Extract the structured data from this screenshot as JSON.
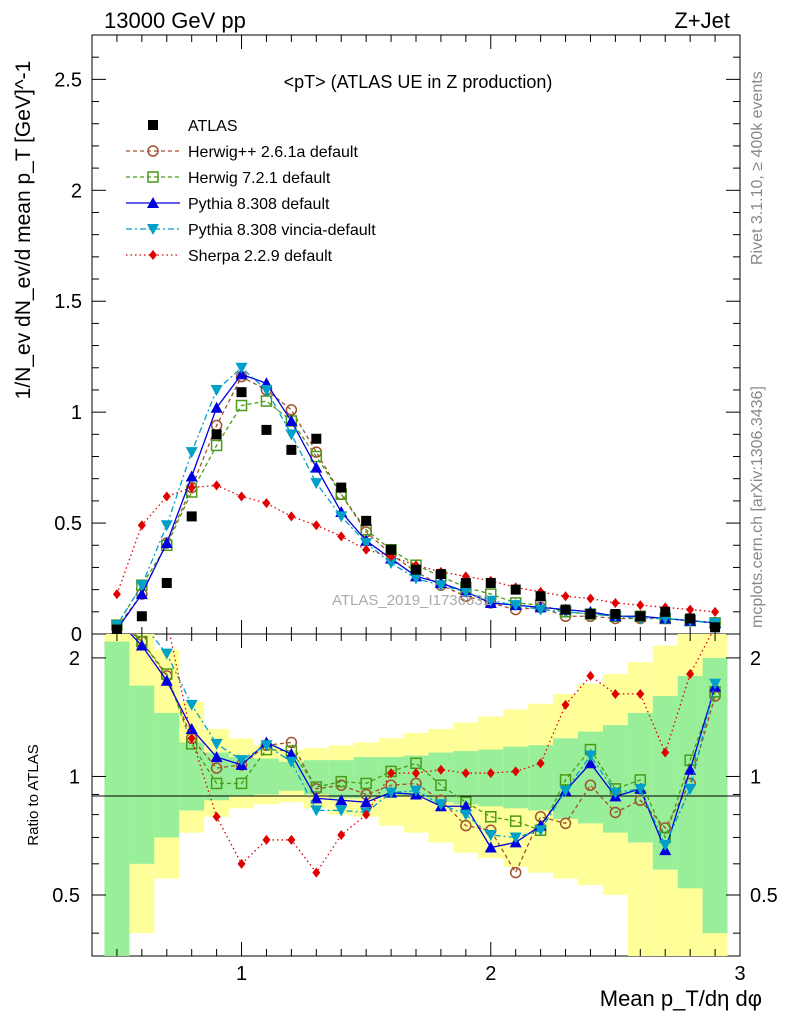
{
  "header": {
    "left": "13000 GeV pp",
    "right": "Z+Jet"
  },
  "side_labels": {
    "rivet": "Rivet 3.1.10, ≥ 400k events",
    "mcplots": "mcplots.cern.ch [arXiv:1306.3436]"
  },
  "watermark": "ATLAS_2019_I1736531",
  "chart_data": {
    "type": "scatter",
    "title": "<pT> (ATLAS UE in Z production)",
    "xlabel": "Mean p_T/dη dφ",
    "ylabel": "1/N_ev dN_ev/d mean p_T [GeV]^-1",
    "ratio_ylabel": "Ratio to ATLAS",
    "xlim": [
      0.4,
      3.0
    ],
    "ylim": [
      0,
      2.7
    ],
    "ratio_ylim": [
      0.35,
      2.3
    ],
    "ratio_log": true,
    "x_ticks": [
      "1",
      "2",
      "3"
    ],
    "y_ticks": [
      "0",
      "0.5",
      "1",
      "1.5",
      "2",
      "2.5"
    ],
    "ratio_ticks": [
      "0.5",
      "1",
      "2"
    ],
    "legend_position": "top-left",
    "x": [
      0.5,
      0.6,
      0.7,
      0.8,
      0.9,
      1.0,
      1.1,
      1.2,
      1.3,
      1.4,
      1.5,
      1.6,
      1.7,
      1.8,
      1.9,
      2.0,
      2.1,
      2.2,
      2.3,
      2.4,
      2.5,
      2.6,
      2.7,
      2.8,
      2.9
    ],
    "series": [
      {
        "name": "ATLAS",
        "color": "#000000",
        "marker": "square",
        "dash": "none",
        "values": [
          0.02,
          0.08,
          0.23,
          0.53,
          0.9,
          1.09,
          0.92,
          0.83,
          0.88,
          0.66,
          0.51,
          0.38,
          0.29,
          0.27,
          0.23,
          0.23,
          0.2,
          0.17,
          0.11,
          0.09,
          0.09,
          0.08,
          0.1,
          0.07,
          0.03
        ],
        "ratio": [
          1,
          1,
          1,
          1,
          1,
          1,
          1,
          1,
          1,
          1,
          1,
          1,
          1,
          1,
          1,
          1,
          1,
          1,
          1,
          1,
          1,
          1,
          1,
          1,
          1
        ]
      },
      {
        "name": "Herwig++ 2.6.1a default",
        "color": "#a0522d",
        "marker": "open-circle",
        "dash": "4,3",
        "values": [
          0.03,
          0.18,
          0.41,
          0.66,
          0.94,
          1.16,
          1.1,
          1.01,
          0.82,
          0.63,
          0.46,
          0.36,
          0.28,
          0.22,
          0.17,
          0.14,
          0.11,
          0.12,
          0.08,
          0.08,
          0.07,
          0.07,
          0.07,
          0.06,
          0.05
        ],
        "ratio": [
          2.5,
          2.2,
          1.8,
          1.25,
          1.05,
          1.07,
          1.2,
          1.22,
          0.93,
          0.95,
          0.9,
          0.95,
          0.96,
          0.87,
          0.75,
          0.73,
          0.57,
          0.79,
          0.76,
          0.95,
          0.81,
          0.87,
          0.74,
          0.96,
          1.6
        ]
      },
      {
        "name": "Herwig 7.2.1 default",
        "color": "#4b9a1a",
        "marker": "open-square",
        "dash": "4,3",
        "values": [
          0.04,
          0.22,
          0.4,
          0.64,
          0.85,
          1.03,
          1.05,
          0.96,
          0.8,
          0.63,
          0.47,
          0.38,
          0.31,
          0.26,
          0.21,
          0.18,
          0.14,
          0.13,
          0.1,
          0.09,
          0.08,
          0.08,
          0.07,
          0.06,
          0.05
        ],
        "ratio": [
          2.6,
          2.2,
          1.82,
          1.21,
          0.96,
          0.96,
          1.17,
          1.16,
          0.94,
          0.97,
          0.96,
          1.03,
          1.08,
          0.95,
          0.86,
          0.79,
          0.77,
          0.73,
          0.98,
          1.17,
          0.93,
          0.98,
          0.7,
          1.1,
          1.64
        ]
      },
      {
        "name": "Pythia 8.308 default",
        "color": "#0000e0",
        "marker": "triangle-up",
        "dash": "none",
        "values": [
          0.02,
          0.18,
          0.41,
          0.71,
          1.02,
          1.17,
          1.13,
          0.96,
          0.75,
          0.55,
          0.42,
          0.34,
          0.26,
          0.23,
          0.19,
          0.14,
          0.13,
          0.12,
          0.11,
          0.1,
          0.08,
          0.08,
          0.07,
          0.06,
          0.05
        ],
        "ratio": [
          2.5,
          2.15,
          1.75,
          1.32,
          1.12,
          1.07,
          1.22,
          1.14,
          0.88,
          0.87,
          0.86,
          0.91,
          0.9,
          0.84,
          0.84,
          0.66,
          0.68,
          0.75,
          0.92,
          1.08,
          0.89,
          0.93,
          0.65,
          1.04,
          1.69
        ]
      },
      {
        "name": "Pythia 8.308 vincia-default",
        "color": "#00a0c8",
        "marker": "triangle-down",
        "dash": "6,3,2,3",
        "values": [
          0.04,
          0.22,
          0.49,
          0.82,
          1.1,
          1.2,
          1.1,
          0.9,
          0.68,
          0.53,
          0.41,
          0.32,
          0.25,
          0.22,
          0.19,
          0.15,
          0.13,
          0.11,
          0.1,
          0.09,
          0.08,
          0.07,
          0.07,
          0.06,
          0.05
        ],
        "ratio": [
          2.8,
          2.45,
          2.05,
          1.52,
          1.21,
          1.1,
          1.2,
          1.09,
          0.82,
          0.82,
          0.81,
          0.91,
          0.92,
          0.85,
          0.8,
          0.71,
          0.7,
          0.73,
          0.92,
          1.13,
          0.91,
          0.93,
          0.67,
          0.93,
          1.72
        ]
      },
      {
        "name": "Sherpa 2.2.9 default",
        "color": "#e00000",
        "marker": "diamond",
        "dash": "1.5,3",
        "values": [
          0.18,
          0.49,
          0.62,
          0.66,
          0.67,
          0.62,
          0.59,
          0.53,
          0.49,
          0.44,
          0.38,
          0.35,
          0.31,
          0.28,
          0.26,
          0.24,
          0.21,
          0.19,
          0.17,
          0.16,
          0.14,
          0.13,
          0.12,
          0.11,
          0.1
        ],
        "ratio": [
          3.5,
          3.0,
          2.5,
          1.25,
          0.79,
          0.6,
          0.69,
          0.69,
          0.57,
          0.71,
          0.8,
          1.02,
          1.02,
          1.04,
          1.02,
          1.02,
          1.03,
          1.08,
          1.52,
          1.8,
          1.62,
          1.62,
          1.15,
          1.82,
          2.4
        ]
      }
    ],
    "bands": {
      "x_edges": [
        0.45,
        0.55,
        0.65,
        0.75,
        0.85,
        0.95,
        1.05,
        1.15,
        1.25,
        1.35,
        1.45,
        1.55,
        1.65,
        1.75,
        1.85,
        1.95,
        2.05,
        2.15,
        2.25,
        2.35,
        2.45,
        2.55,
        2.65,
        2.75,
        2.85,
        2.95
      ],
      "green_lo": [
        0.35,
        0.6,
        0.7,
        0.82,
        0.87,
        0.89,
        0.9,
        0.92,
        0.9,
        0.88,
        0.88,
        0.89,
        0.89,
        0.86,
        0.85,
        0.84,
        0.83,
        0.82,
        0.78,
        0.76,
        0.72,
        0.68,
        0.58,
        0.52,
        0.4
      ],
      "green_hi": [
        2.2,
        1.7,
        1.45,
        1.22,
        1.15,
        1.12,
        1.11,
        1.09,
        1.1,
        1.1,
        1.12,
        1.12,
        1.13,
        1.15,
        1.16,
        1.17,
        1.19,
        1.2,
        1.25,
        1.3,
        1.35,
        1.45,
        1.6,
        1.8,
        2.0
      ],
      "yellow_lo": [
        0.35,
        0.4,
        0.55,
        0.72,
        0.79,
        0.83,
        0.85,
        0.86,
        0.83,
        0.8,
        0.79,
        0.75,
        0.72,
        0.68,
        0.64,
        0.62,
        0.59,
        0.57,
        0.55,
        0.53,
        0.5,
        0.35,
        0.35,
        0.35,
        0.35
      ],
      "yellow_hi": [
        2.3,
        2.3,
        2.1,
        1.55,
        1.32,
        1.25,
        1.2,
        1.17,
        1.18,
        1.2,
        1.22,
        1.25,
        1.29,
        1.32,
        1.37,
        1.42,
        1.48,
        1.53,
        1.62,
        1.72,
        1.82,
        1.95,
        2.15,
        2.3,
        2.3
      ]
    }
  }
}
